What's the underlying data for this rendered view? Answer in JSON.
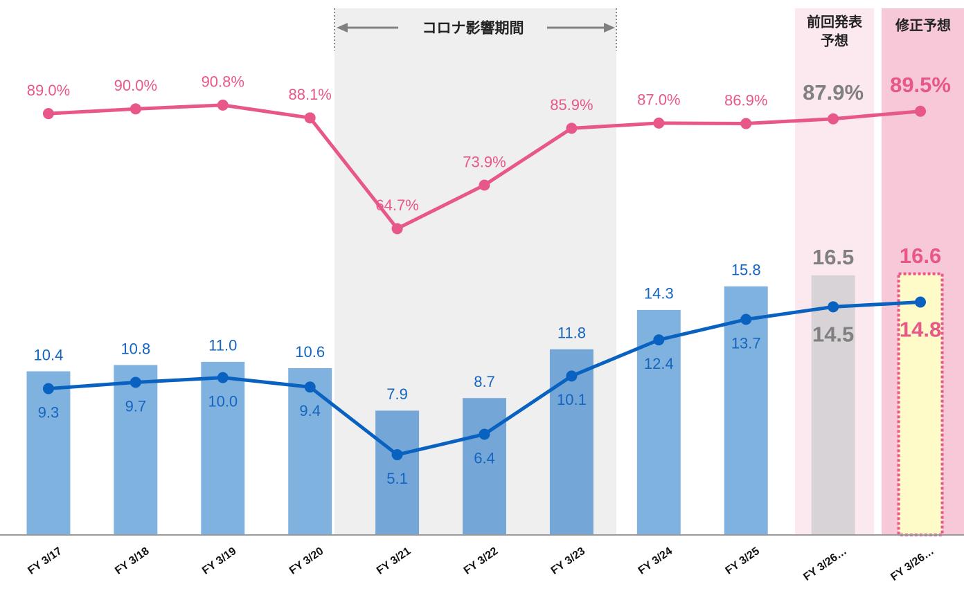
{
  "chart_data": {
    "type": "combo",
    "categories": [
      "FY 3/17",
      "FY 3/18",
      "FY 3/19",
      "FY 3/20",
      "FY 3/21",
      "FY 3/22",
      "FY 3/23",
      "FY 3/24",
      "FY 3/25",
      "FY 3/26…",
      "FY 3/26…"
    ],
    "ylim": [
      0,
      34
    ],
    "y2lim": [
      0,
      113
    ],
    "series": [
      {
        "type": "bar",
        "colors": [
          "#80b2e0",
          "#80b2e0",
          "#80b2e0",
          "#80b2e0",
          "#74a6d8",
          "#74a6d8",
          "#74a6d8",
          "#80b2e0",
          "#80b2e0",
          "#d8d3d6",
          "#fffbc8"
        ],
        "values": [
          10.4,
          10.8,
          11.0,
          10.6,
          7.9,
          8.7,
          11.8,
          14.3,
          15.8,
          16.5,
          16.6
        ],
        "value_labels": [
          "10.4",
          "10.8",
          "11.0",
          "10.6",
          "7.9",
          "8.7",
          "11.8",
          "14.3",
          "15.8",
          "16.5",
          "16.6"
        ],
        "label_colors": [
          "#1565c0",
          "#1565c0",
          "#1565c0",
          "#1565c0",
          "#1565c0",
          "#1565c0",
          "#1565c0",
          "#1565c0",
          "#1565c0",
          "#808080",
          "#e8578a"
        ]
      },
      {
        "type": "line",
        "color": "#0a62c0",
        "values": [
          9.3,
          9.7,
          10.0,
          9.4,
          5.1,
          6.4,
          10.1,
          12.4,
          13.7,
          14.5,
          14.8
        ],
        "value_labels": [
          "9.3",
          "9.7",
          "10.0",
          "9.4",
          "5.1",
          "6.4",
          "10.1",
          "12.4",
          "13.7",
          "14.5",
          "14.8"
        ],
        "label_colors": [
          "#1565c0",
          "#1565c0",
          "#1565c0",
          "#1565c0",
          "#1565c0",
          "#1565c0",
          "#1565c0",
          "#1565c0",
          "#1565c0",
          "#808080",
          "#e8578a"
        ]
      },
      {
        "type": "line",
        "axis": "y2",
        "color": "#e8578a",
        "values": [
          89.0,
          90.0,
          90.8,
          88.1,
          64.7,
          73.9,
          85.9,
          87.0,
          86.9,
          87.9,
          89.5
        ],
        "value_labels": [
          "89.0%",
          "90.0%",
          "90.8%",
          "88.1%",
          "64.7%",
          "73.9%",
          "85.9%",
          "87.0%",
          "86.9%",
          "87.9%",
          "89.5%"
        ],
        "label_colors": [
          "#e8578a",
          "#e8578a",
          "#e8578a",
          "#e8578a",
          "#e8578a",
          "#e8578a",
          "#e8578a",
          "#e8578a",
          "#e8578a",
          "#808080",
          "#e8578a"
        ]
      }
    ],
    "annotations": [
      "コロナ影響期間",
      "前回発表",
      "予想",
      "修正予想"
    ]
  }
}
